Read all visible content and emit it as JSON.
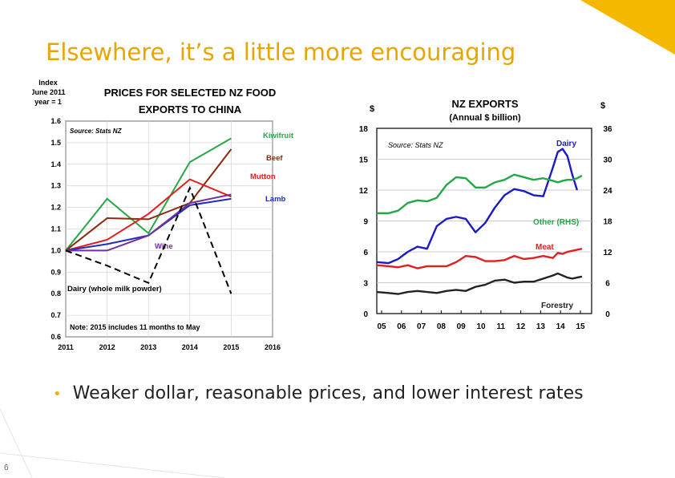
{
  "slide": {
    "title": "Elsewhere, it’s a little more encouraging",
    "bullet": "Weaker dollar, reasonable prices, and lower interest rates",
    "page_number": "6",
    "accent_color": "#f5b800"
  },
  "chart_data": [
    {
      "type": "line",
      "title": "PRICES  FOR SELECTED NZ FOOD EXPORTS TO CHINA",
      "title_lines": [
        "PRICES  FOR SELECTED NZ FOOD",
        "EXPORTS TO CHINA"
      ],
      "ylabel_lines": [
        "Index",
        "June 2011",
        "year = 1"
      ],
      "source": "Source: Stats NZ",
      "note": "Note: 2015 includes 11 months to May",
      "x_ticks": [
        "2011",
        "2012",
        "2013",
        "2014",
        "2015",
        "2016"
      ],
      "y_ticks": [
        "0.6",
        "0.7",
        "0.8",
        "0.9",
        "1.0",
        "1.1",
        "1.2",
        "1.3",
        "1.4",
        "1.5",
        "1.6"
      ],
      "xlim": [
        2011,
        2016
      ],
      "ylim": [
        0.6,
        1.6
      ],
      "grid": true,
      "x": [
        2011,
        2012,
        2013,
        2014,
        2015
      ],
      "series": [
        {
          "name": "Kiwifruit",
          "color": "#27a846",
          "values": [
            1.0,
            1.24,
            1.08,
            1.41,
            1.52
          ]
        },
        {
          "name": "Beef",
          "color": "#8b2a0e",
          "values": [
            1.0,
            1.15,
            1.145,
            1.22,
            1.47
          ]
        },
        {
          "name": "Mutton",
          "color": "#e02020",
          "values": [
            1.0,
            1.05,
            1.17,
            1.33,
            1.25
          ]
        },
        {
          "name": "Lamb",
          "color": "#1f2bc0",
          "values": [
            1.0,
            1.03,
            1.07,
            1.21,
            1.24
          ]
        },
        {
          "name": "Wine",
          "color": "#7030a0",
          "values": [
            1.0,
            1.0,
            1.07,
            1.22,
            1.26
          ]
        },
        {
          "name": "Dairy (whole milk powder)",
          "color": "#000000",
          "dashed": true,
          "values": [
            1.0,
            0.93,
            0.85,
            1.29,
            0.8
          ]
        }
      ]
    },
    {
      "type": "line",
      "title": "NZ EXPORTS",
      "subtitle": "(Annual $ billion)",
      "left_unit": "$",
      "right_unit": "$",
      "source": "Source: Stats NZ",
      "x_ticks": [
        "05",
        "06",
        "07",
        "08",
        "09",
        "10",
        "11",
        "12",
        "13",
        "14",
        "15"
      ],
      "y_ticks_left": [
        "0",
        "3",
        "6",
        "9",
        "12",
        "15",
        "18"
      ],
      "y_ticks_right": [
        "0",
        "6",
        "12",
        "18",
        "24",
        "30",
        "36"
      ],
      "xlim": [
        2004.9,
        2016.0
      ],
      "ylim_left": [
        0,
        18
      ],
      "ylim_right": [
        0,
        36
      ],
      "grid": true,
      "x": [
        2004.9,
        2005.5,
        2006.0,
        2006.5,
        2007.0,
        2007.5,
        2008.0,
        2008.5,
        2009.0,
        2009.5,
        2010.0,
        2010.5,
        2011.0,
        2011.5,
        2012.0,
        2012.5,
        2013.0,
        2013.5,
        2014.0,
        2014.25,
        2014.5,
        2014.75,
        2015.0,
        2015.25,
        2015.5
      ],
      "series": [
        {
          "name": "Dairy",
          "color": "#1a1ac8",
          "axis": "left",
          "values": [
            5.0,
            4.9,
            5.3,
            6.0,
            6.5,
            6.3,
            8.5,
            9.2,
            9.4,
            9.2,
            7.9,
            8.8,
            10.3,
            11.5,
            12.1,
            11.9,
            11.5,
            11.4,
            14.2,
            15.7,
            16.0,
            15.3,
            13.5,
            12.0,
            null
          ]
        },
        {
          "name": "Other (RHS)",
          "color": "#22a845",
          "axis": "right",
          "values": [
            19.5,
            19.5,
            20.0,
            21.5,
            22.0,
            21.8,
            22.5,
            25.0,
            26.5,
            26.3,
            24.5,
            24.5,
            25.5,
            26.0,
            27.0,
            26.5,
            26.0,
            26.3,
            25.8,
            25.5,
            25.8,
            26.0,
            26.0,
            26.3,
            26.8
          ]
        },
        {
          "name": "Meat",
          "color": "#e02020",
          "axis": "left",
          "values": [
            4.7,
            4.6,
            4.5,
            4.7,
            4.4,
            4.6,
            4.6,
            4.6,
            5.0,
            5.6,
            5.5,
            5.1,
            5.1,
            5.2,
            5.6,
            5.3,
            5.4,
            5.6,
            5.4,
            5.9,
            5.8,
            6.0,
            6.1,
            6.2,
            6.3
          ]
        },
        {
          "name": "Forestry",
          "color": "#222222",
          "axis": "left",
          "values": [
            2.1,
            2.0,
            1.9,
            2.1,
            2.2,
            2.1,
            2.0,
            2.2,
            2.3,
            2.2,
            2.6,
            2.8,
            3.2,
            3.3,
            3.0,
            3.1,
            3.1,
            3.4,
            3.7,
            3.9,
            3.7,
            3.5,
            3.4,
            3.5,
            3.6
          ]
        }
      ]
    }
  ]
}
